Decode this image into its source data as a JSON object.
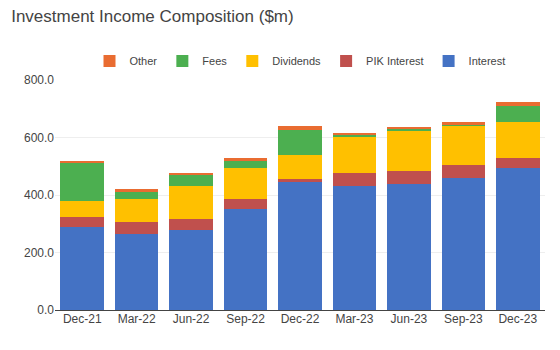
{
  "chart_data": {
    "type": "bar",
    "title": "Investment Income Composition ($m)",
    "stacked": true,
    "categories": [
      "Dec-21",
      "Mar-22",
      "Jun-22",
      "Sep-22",
      "Dec-22",
      "Mar-23",
      "Jun-23",
      "Sep-23",
      "Dec-23"
    ],
    "series": [
      {
        "name": "Interest",
        "color": "#4472C4",
        "values": [
          290,
          265,
          280,
          350,
          445,
          430,
          440,
          460,
          495
        ]
      },
      {
        "name": "PIK Interest",
        "color": "#C0504D",
        "values": [
          35,
          40,
          35,
          35,
          10,
          45,
          45,
          45,
          35
        ]
      },
      {
        "name": "Dividends",
        "color": "#FFC000",
        "values": [
          55,
          80,
          115,
          110,
          85,
          130,
          140,
          135,
          125
        ]
      },
      {
        "name": "Fees",
        "color": "#4CAF50",
        "values": [
          130,
          25,
          40,
          25,
          85,
          5,
          5,
          5,
          55
        ]
      },
      {
        "name": "Other",
        "color": "#E96C31",
        "values": [
          10,
          10,
          5,
          10,
          15,
          5,
          5,
          10,
          15
        ]
      }
    ],
    "ylim": [
      0,
      800
    ],
    "yticks": [
      {
        "value": 0,
        "label": "0.0"
      },
      {
        "value": 200,
        "label": "200.0"
      },
      {
        "value": 400,
        "label": "400.0"
      },
      {
        "value": 600,
        "label": "600.0"
      },
      {
        "value": 800,
        "label": "800.0"
      }
    ],
    "grid": true,
    "legend": "top"
  }
}
